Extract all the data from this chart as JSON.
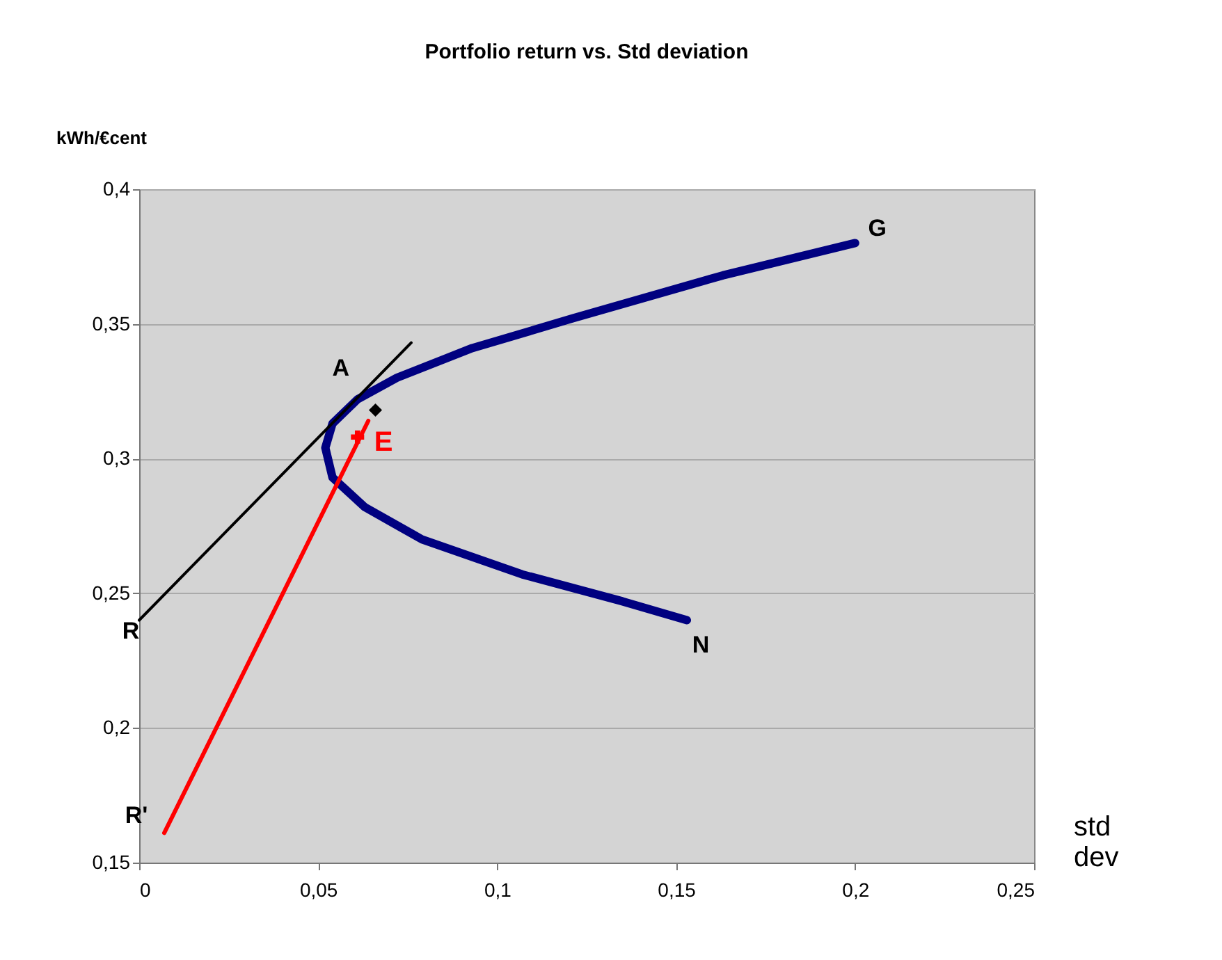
{
  "chart_data": {
    "type": "line",
    "title": "Portfolio return vs. Std deviation",
    "xlabel": "std dev",
    "ylabel": "kWh/€cent",
    "xlim": [
      0,
      0.25
    ],
    "ylim": [
      0.15,
      0.4
    ],
    "xticks": [
      0,
      {
        "value": 0.05,
        "label": "0,05"
      },
      {
        "value": 0.1,
        "label": "0,1"
      },
      {
        "value": 0.15,
        "label": "0,15"
      },
      {
        "value": 0.2,
        "label": "0,2"
      },
      {
        "value": 0.25,
        "label": "0,25"
      }
    ],
    "yticks": [
      {
        "value": 0.15,
        "label": "0,15"
      },
      {
        "value": 0.2,
        "label": "0,2"
      },
      {
        "value": 0.25,
        "label": "0,25"
      },
      {
        "value": 0.3,
        "label": "0,3"
      },
      {
        "value": 0.35,
        "label": "0,35"
      },
      {
        "value": 0.4,
        "label": "0,4"
      }
    ],
    "grid": "y",
    "line_style": "solid",
    "series": [
      {
        "color": "#000080",
        "x": [
          0.2,
          0.163,
          0.121,
          0.093,
          0.072,
          0.061,
          0.054,
          0.052,
          0.054,
          0.063,
          0.079,
          0.107,
          0.135,
          0.153
        ],
        "values": [
          0.38,
          0.368,
          0.352,
          0.341,
          0.33,
          0.322,
          0.313,
          0.304,
          0.293,
          0.282,
          0.27,
          0.257,
          0.247,
          0.24
        ]
      },
      {
        "color": "#000000",
        "x": [
          0,
          0.076
        ],
        "values": [
          0.24,
          0.343
        ]
      },
      {
        "color": "#ff0000",
        "x": [
          0.007,
          0.064
        ],
        "values": [
          0.161,
          0.314
        ]
      },
      {
        "type": "scatter",
        "name": "E",
        "color": "#ff0000",
        "marker": "cross",
        "x": [
          0.061
        ],
        "values": [
          0.308
        ]
      },
      {
        "type": "scatter",
        "color": "#000000",
        "marker": "diamond",
        "x": [
          0.066
        ],
        "values": [
          0.318
        ]
      }
    ],
    "annotations": [
      {
        "text": "G",
        "x": 0.2,
        "y": 0.38
      },
      {
        "text": "A",
        "x": 0.061,
        "y": 0.322
      },
      {
        "text": "N",
        "x": 0.153,
        "y": 0.24
      },
      {
        "text": "R",
        "x": 0,
        "y": 0.24
      },
      {
        "text": "R'",
        "x": 0.007,
        "y": 0.161
      }
    ]
  }
}
